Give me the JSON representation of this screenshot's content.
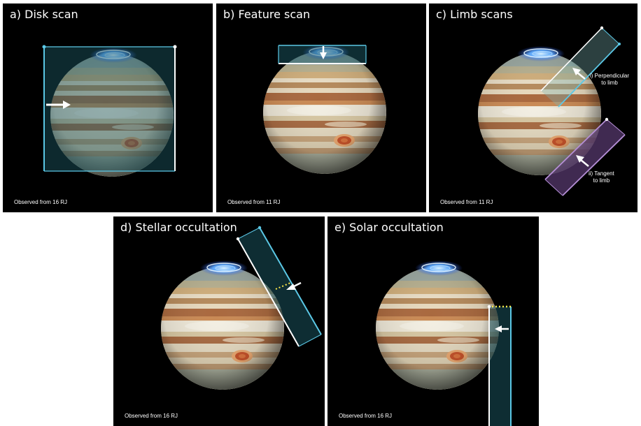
{
  "colors": {
    "background": "#000000",
    "scan_cyan": "#5bc8e6",
    "scan_fill": "#1c5a66",
    "tangent_purple": "#b58fd6",
    "tangent_fill": "#5b3c73",
    "occultation_dots": "#ffe94a",
    "arrow": "#ffffff"
  },
  "panels": {
    "a": {
      "title": "a) Disk scan",
      "observed": "Observed from 16 RJ"
    },
    "b": {
      "title": "b) Feature scan",
      "observed": "Observed from 11 RJ"
    },
    "c": {
      "title": "c) Limb scans",
      "observed": "Observed from 11 RJ",
      "perpendicular_line1": "i) Perpendicular",
      "perpendicular_line2": "to limb",
      "tangent_line1": "ii) Tangent",
      "tangent_line2": "to limb"
    },
    "d": {
      "title": "d) Stellar occultation",
      "observed": "Observed from 16 RJ"
    },
    "e": {
      "title": "e) Solar occultation",
      "observed": "Observed from 16 RJ"
    }
  },
  "icons": {
    "planet": "jupiter-icon",
    "aurora": "aurora-icon",
    "arrow": "arrow-icon"
  }
}
